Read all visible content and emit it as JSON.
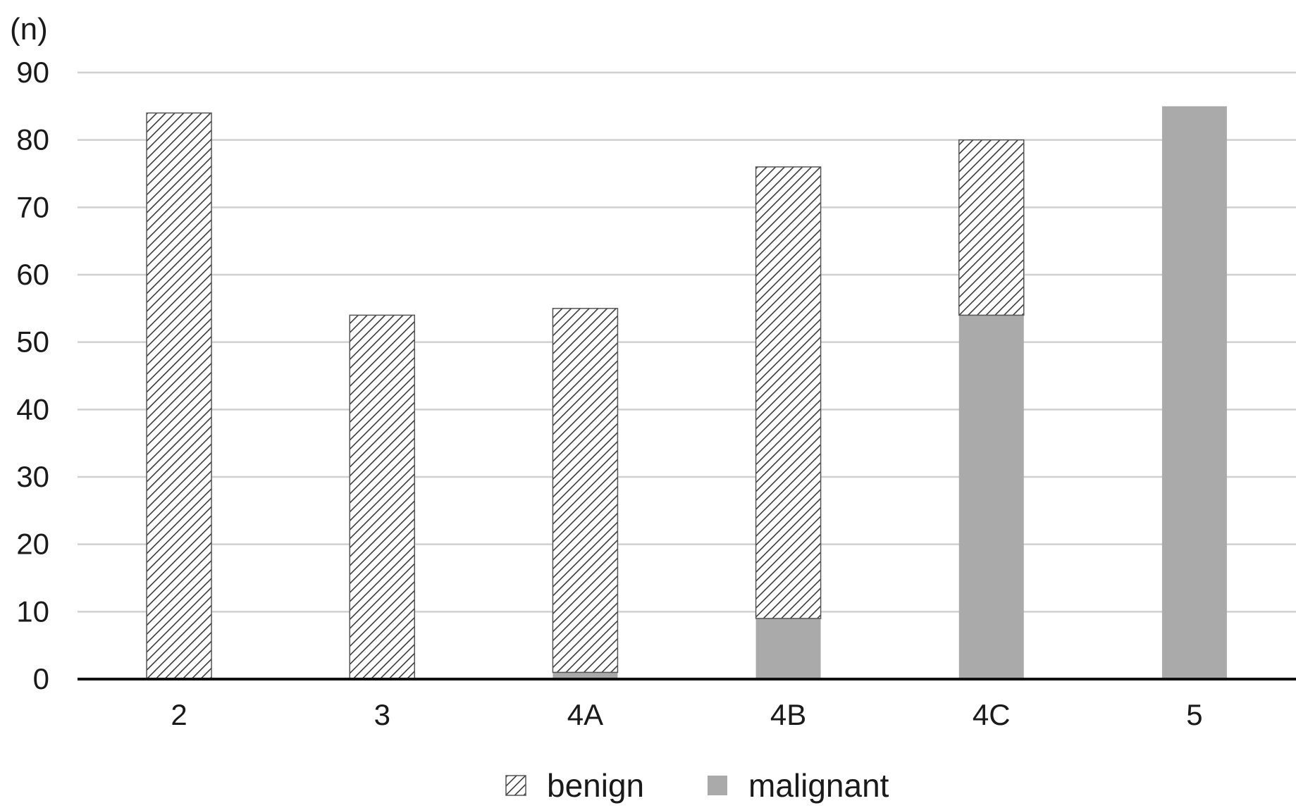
{
  "chart_data": {
    "type": "bar",
    "stacked": true,
    "unit_label": "(n)",
    "categories": [
      "2",
      "3",
      "4A",
      "4B",
      "4C",
      "5"
    ],
    "series": [
      {
        "name": "malignant",
        "values": [
          0,
          0,
          1,
          9,
          54,
          85
        ],
        "color": "#aaaaaa",
        "fill": "solid"
      },
      {
        "name": "benign",
        "values": [
          84,
          54,
          54,
          67,
          26,
          0
        ],
        "color": "#555555",
        "fill": "diagonal-hatch"
      }
    ],
    "ylim": [
      0,
      90
    ],
    "yticks": [
      0,
      10,
      20,
      30,
      40,
      50,
      60,
      70,
      80,
      90
    ],
    "grid": true,
    "legend_position": "bottom"
  }
}
